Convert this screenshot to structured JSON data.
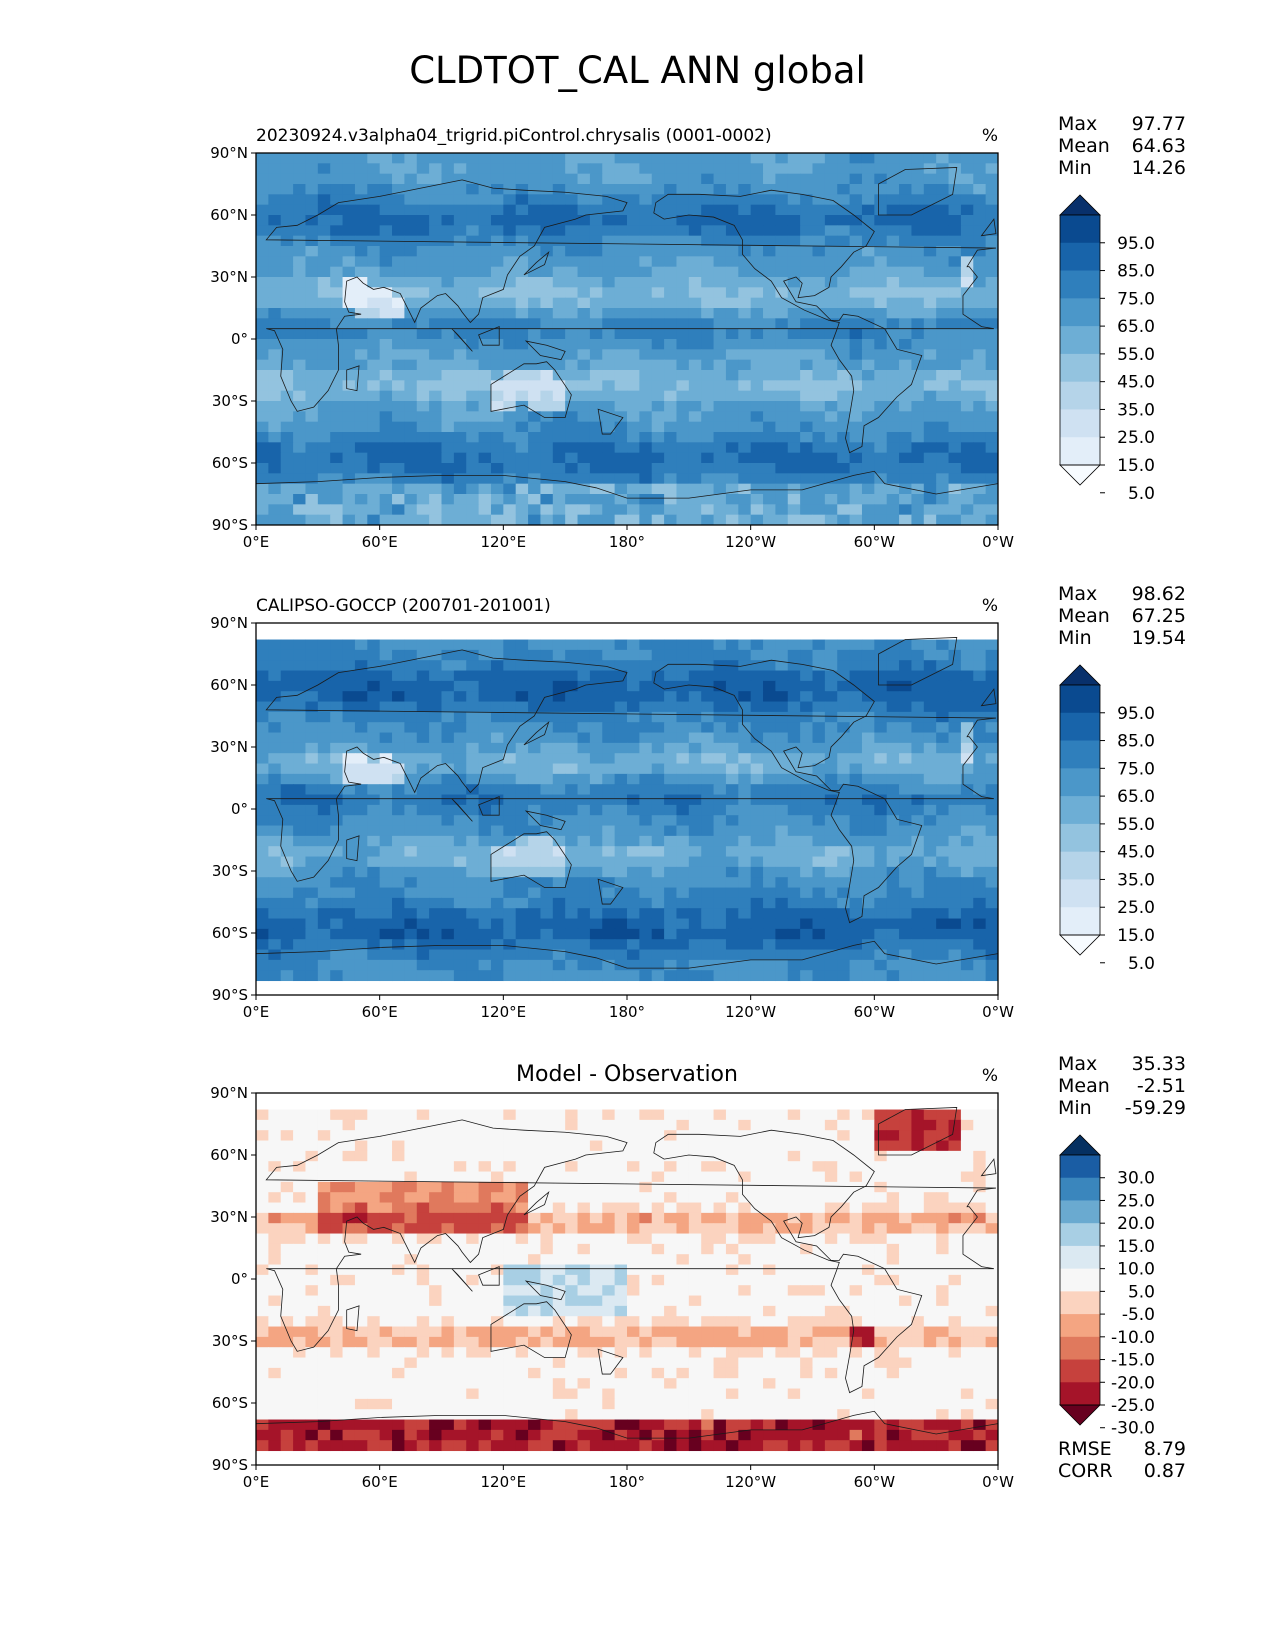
{
  "title": "CLDTOT_CAL ANN global",
  "axes": {
    "lat_ticks": [
      "90°N",
      "60°N",
      "30°N",
      "0°",
      "30°S",
      "60°S",
      "90°S"
    ],
    "lon_ticks": [
      "0°E",
      "60°E",
      "120°E",
      "180°",
      "120°W",
      "60°W",
      "0°W"
    ]
  },
  "panels": [
    {
      "title": "20230924.v3alpha04_trigrid.piControl.chrysalis (0001-0002)",
      "units": "%",
      "stats": [
        {
          "label": "Max",
          "value": "97.77"
        },
        {
          "label": "Mean",
          "value": "64.63"
        },
        {
          "label": "Min",
          "value": "14.26"
        }
      ],
      "colorbar_labels": [
        "95.0",
        "85.0",
        "75.0",
        "65.0",
        "55.0",
        "45.0",
        "35.0",
        "25.0",
        "15.0",
        "5.0"
      ]
    },
    {
      "title": "CALIPSO-GOCCP (200701-201001)",
      "units": "%",
      "stats": [
        {
          "label": "Max",
          "value": "98.62"
        },
        {
          "label": "Mean",
          "value": "67.25"
        },
        {
          "label": "Min",
          "value": "19.54"
        }
      ],
      "colorbar_labels": [
        "95.0",
        "85.0",
        "75.0",
        "65.0",
        "55.0",
        "45.0",
        "35.0",
        "25.0",
        "15.0",
        "5.0"
      ]
    },
    {
      "title": "Model - Observation",
      "units": "%",
      "stats": [
        {
          "label": "Max",
          "value": "35.33"
        },
        {
          "label": "Mean",
          "value": "-2.51"
        },
        {
          "label": "Min",
          "value": "-59.29"
        }
      ],
      "colorbar_labels": [
        "30.0",
        "25.0",
        "20.0",
        "15.0",
        "10.0",
        "5.0",
        "-5.0",
        "-10.0",
        "-15.0",
        "-20.0",
        "-25.0",
        "-30.0"
      ],
      "metrics": [
        {
          "label": "RMSE",
          "value": "8.79"
        },
        {
          "label": "CORR",
          "value": "0.87"
        }
      ]
    }
  ],
  "chart_data": [
    {
      "type": "heatmap",
      "title": "20230924.v3alpha04_trigrid.piControl.chrysalis (0001-0002)",
      "units": "%",
      "xlim": [
        0,
        360
      ],
      "ylim": [
        -90,
        90
      ],
      "levels": [
        0,
        5,
        15,
        25,
        35,
        45,
        55,
        65,
        75,
        85,
        95,
        100
      ],
      "colormap": "Blues",
      "max": 97.77,
      "mean": 64.63,
      "min": 14.26
    },
    {
      "type": "heatmap",
      "title": "CALIPSO-GOCCP (200701-201001)",
      "units": "%",
      "xlim": [
        0,
        360
      ],
      "ylim": [
        -90,
        90
      ],
      "levels": [
        0,
        5,
        15,
        25,
        35,
        45,
        55,
        65,
        75,
        85,
        95,
        100
      ],
      "colormap": "Blues",
      "max": 98.62,
      "mean": 67.25,
      "min": 19.54
    },
    {
      "type": "heatmap",
      "title": "Model - Observation",
      "units": "%",
      "xlim": [
        0,
        360
      ],
      "ylim": [
        -90,
        90
      ],
      "levels": [
        -35,
        -30,
        -25,
        -20,
        -15,
        -10,
        -5,
        5,
        10,
        15,
        20,
        25,
        30,
        35
      ],
      "colormap": "RdBu_r",
      "max": 35.33,
      "mean": -2.51,
      "min": -59.29,
      "rmse": 8.79,
      "corr": 0.87
    }
  ],
  "colors": {
    "blues": [
      "#f7fbff",
      "#e3eef9",
      "#cfe1f2",
      "#b5d4e9",
      "#93c3df",
      "#6daed5",
      "#4b97c9",
      "#2f7fbc",
      "#1864aa",
      "#0a4a90",
      "#08306b"
    ],
    "diverging": [
      "#67001f",
      "#a51429",
      "#c6413d",
      "#e0795d",
      "#f4a582",
      "#fbd3bf",
      "#f7f7f7",
      "#dbe9f2",
      "#a8cfe4",
      "#6aaad0",
      "#3a86bd",
      "#1a5da4",
      "#053061"
    ]
  }
}
